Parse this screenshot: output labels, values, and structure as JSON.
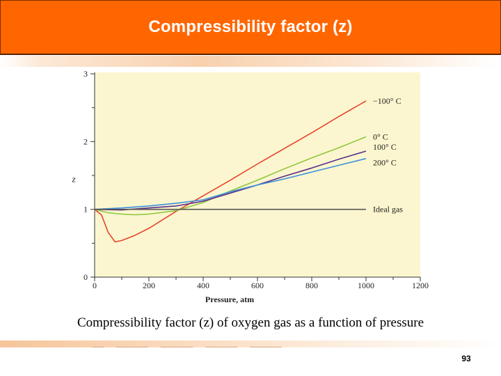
{
  "slide": {
    "title": "Compressibility factor (z)",
    "caption": "Compressibility factor (z) of oxygen gas as a function of pressure",
    "page_number": "93",
    "colors": {
      "title_bar": "#ff6600",
      "plot_background": "#fbf6cf"
    }
  },
  "chart_data": {
    "type": "line",
    "title": "",
    "xlabel": "Pressure, atm",
    "ylabel": "z",
    "xlim": [
      0,
      1200
    ],
    "ylim": [
      0,
      3
    ],
    "xticks": [
      0,
      200,
      400,
      600,
      800,
      1000,
      1200
    ],
    "yticks": [
      0,
      1,
      2,
      3
    ],
    "grid": false,
    "series": [
      {
        "name": "−100° C",
        "color": "#e8432e",
        "x": [
          0,
          25,
          50,
          75,
          100,
          150,
          200,
          300,
          400,
          500,
          600,
          700,
          800,
          900,
          1000
        ],
        "y": [
          1.0,
          0.92,
          0.66,
          0.52,
          0.54,
          0.62,
          0.72,
          0.97,
          1.2,
          1.43,
          1.67,
          1.9,
          2.13,
          2.37,
          2.6
        ]
      },
      {
        "name": "0° C",
        "color": "#8dc63f",
        "x": [
          0,
          50,
          100,
          150,
          200,
          300,
          400,
          500,
          600,
          700,
          800,
          900,
          1000
        ],
        "y": [
          1.0,
          0.95,
          0.93,
          0.92,
          0.93,
          0.98,
          1.1,
          1.27,
          1.43,
          1.6,
          1.76,
          1.91,
          2.07
        ]
      },
      {
        "name": "100° C",
        "color": "#5a2d8a",
        "x": [
          0,
          100,
          200,
          300,
          400,
          500,
          600,
          700,
          800,
          900,
          1000
        ],
        "y": [
          1.0,
          0.99,
          1.02,
          1.05,
          1.12,
          1.24,
          1.36,
          1.49,
          1.61,
          1.74,
          1.86
        ]
      },
      {
        "name": "200° C",
        "color": "#3a8fd9",
        "x": [
          0,
          100,
          200,
          300,
          400,
          500,
          600,
          700,
          800,
          900,
          1000
        ],
        "y": [
          1.0,
          1.02,
          1.05,
          1.09,
          1.14,
          1.26,
          1.36,
          1.45,
          1.55,
          1.65,
          1.75
        ]
      },
      {
        "name": "Ideal gas",
        "color": "#555555",
        "x": [
          0,
          1000
        ],
        "y": [
          1.0,
          1.0
        ]
      }
    ]
  }
}
